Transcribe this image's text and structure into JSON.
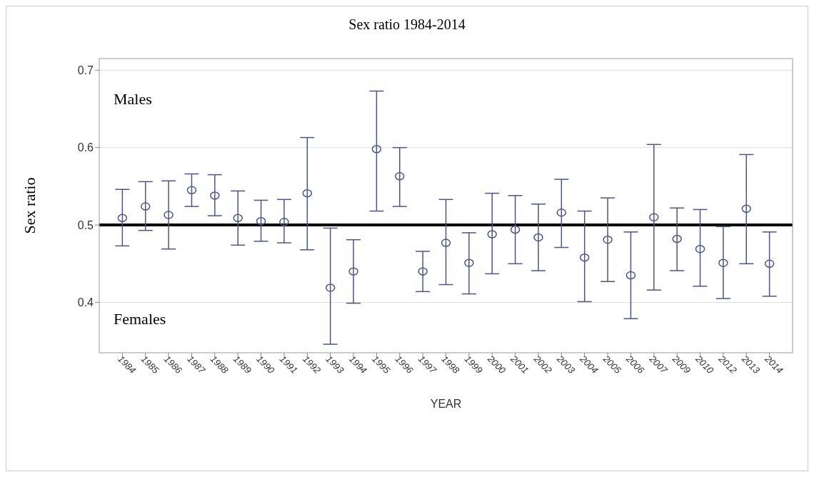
{
  "chart_data": {
    "type": "scatter",
    "title": "Sex ratio 1984-2014",
    "xlabel": "YEAR",
    "ylabel": "Sex ratio",
    "categories": [
      "1984",
      "1985",
      "1986",
      "1987",
      "1988",
      "1989",
      "1990",
      "1991",
      "1992",
      "1993",
      "1994",
      "1995",
      "1996",
      "1997",
      "1998",
      "1999",
      "2000",
      "2001",
      "2002",
      "2003",
      "2004",
      "2005",
      "2006",
      "2007",
      "2009",
      "2010",
      "2012",
      "2013",
      "2014"
    ],
    "series": [
      {
        "color": "#4a5688",
        "values": [
          0.509,
          0.524,
          0.513,
          0.545,
          0.538,
          0.509,
          0.505,
          0.504,
          0.541,
          0.419,
          0.44,
          0.598,
          0.563,
          0.44,
          0.477,
          0.451,
          0.488,
          0.494,
          0.484,
          0.516,
          0.458,
          0.481,
          0.435,
          0.51,
          0.482,
          0.469,
          0.451,
          0.521,
          0.45
        ],
        "errors": [
          [
            0.473,
            0.546
          ],
          [
            0.493,
            0.556
          ],
          [
            0.469,
            0.557
          ],
          [
            0.524,
            0.566
          ],
          [
            0.512,
            0.565
          ],
          [
            0.474,
            0.544
          ],
          [
            0.479,
            0.532
          ],
          [
            0.477,
            0.533
          ],
          [
            0.468,
            0.613
          ],
          [
            0.346,
            0.496
          ],
          [
            0.399,
            0.481
          ],
          [
            0.518,
            0.673
          ],
          [
            0.524,
            0.6
          ],
          [
            0.414,
            0.466
          ],
          [
            0.423,
            0.533
          ],
          [
            0.411,
            0.49
          ],
          [
            0.437,
            0.541
          ],
          [
            0.45,
            0.538
          ],
          [
            0.441,
            0.527
          ],
          [
            0.471,
            0.559
          ],
          [
            0.401,
            0.518
          ],
          [
            0.427,
            0.535
          ],
          [
            0.379,
            0.491
          ],
          [
            0.416,
            0.604
          ],
          [
            0.441,
            0.522
          ],
          [
            0.421,
            0.52
          ],
          [
            0.405,
            0.498
          ],
          [
            0.45,
            0.591
          ],
          [
            0.408,
            0.491
          ]
        ]
      }
    ],
    "ylim": [
      0.335,
      0.715
    ],
    "yticks": [
      0.4,
      0.5,
      0.6,
      0.7
    ],
    "grid": "y",
    "marker": "circle",
    "ref_lines": [
      {
        "axis": "y",
        "value": 0.5,
        "color": "#000000"
      }
    ],
    "annotations": [
      "Males",
      "Females"
    ]
  }
}
